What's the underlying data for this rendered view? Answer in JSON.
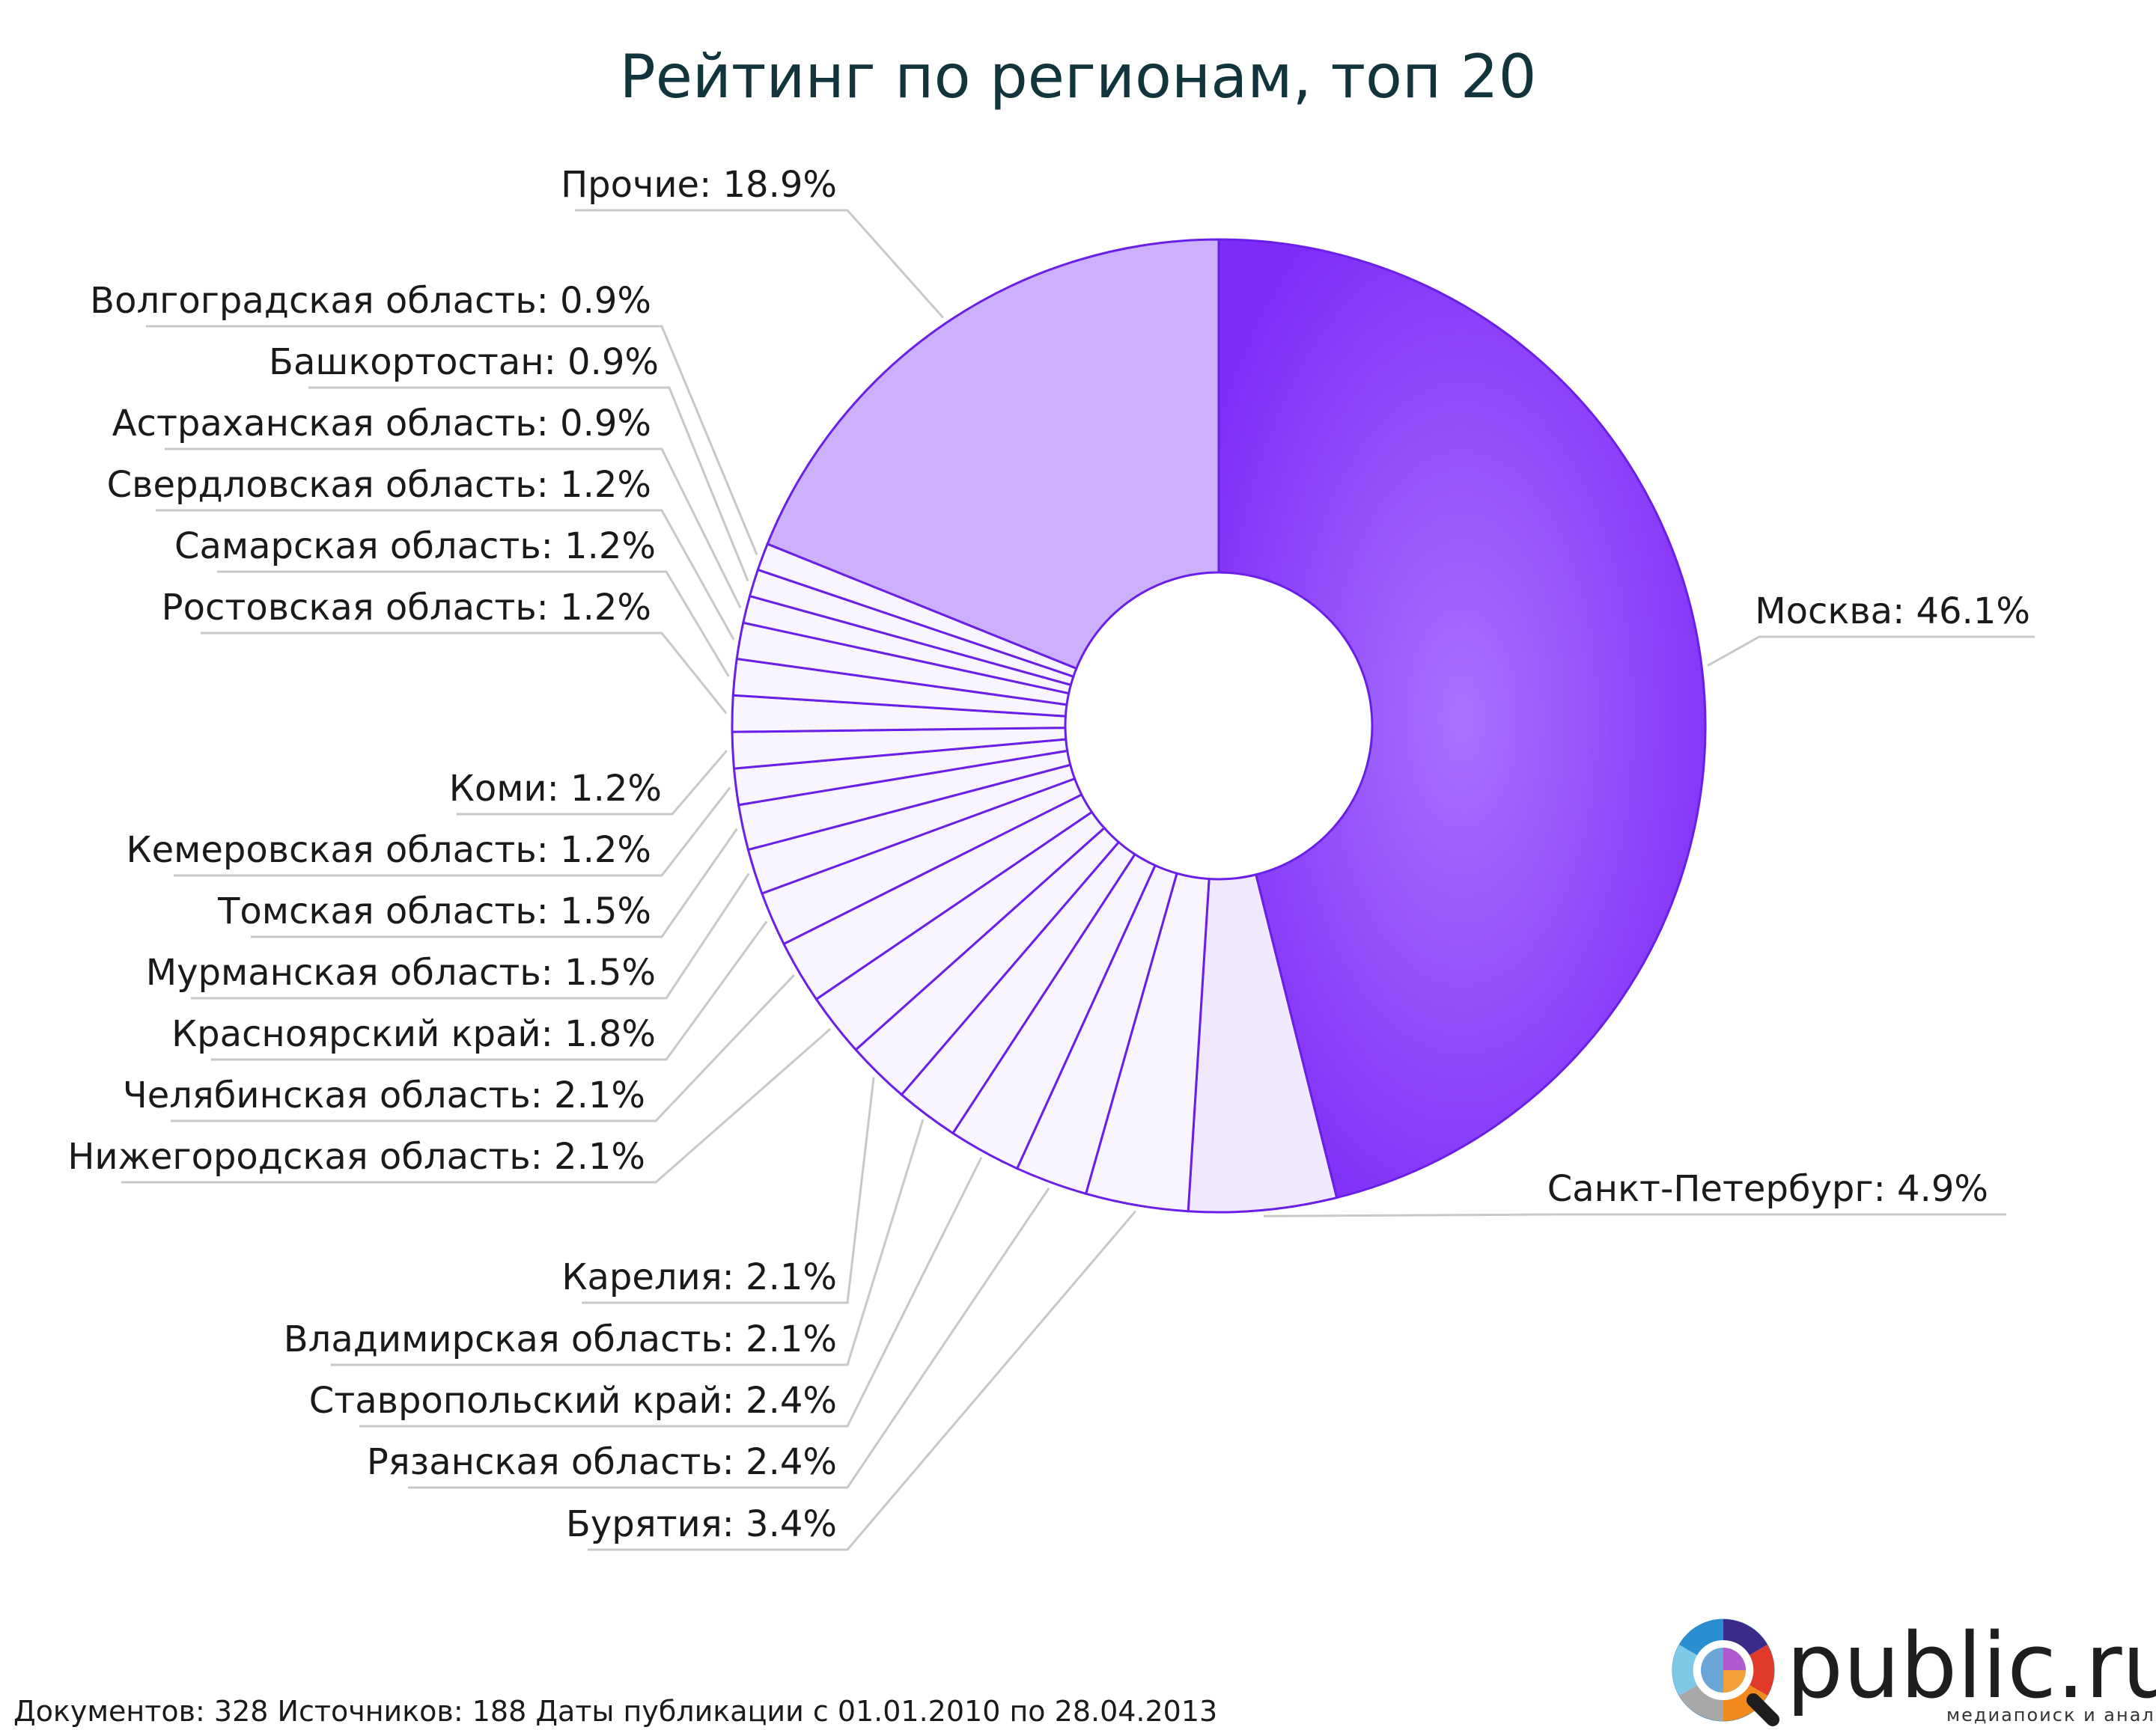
{
  "chart_data": {
    "type": "pie",
    "title": "Рейтинг по регионам, топ 20",
    "series": [
      {
        "name": "Москва",
        "value": 46.1,
        "label": "Москва: 46.1%"
      },
      {
        "name": "Санкт-Петербург",
        "value": 4.9,
        "label": "Санкт-Петербург: 4.9%"
      },
      {
        "name": "Бурятия",
        "value": 3.4,
        "label": "Бурятия: 3.4%"
      },
      {
        "name": "Рязанская область",
        "value": 2.4,
        "label": "Рязанская область: 2.4%"
      },
      {
        "name": "Ставропольский край",
        "value": 2.4,
        "label": "Ставропольский край: 2.4%"
      },
      {
        "name": "Владимирская область",
        "value": 2.1,
        "label": "Владимирская область: 2.1%"
      },
      {
        "name": "Карелия",
        "value": 2.1,
        "label": "Карелия: 2.1%"
      },
      {
        "name": "Нижегородская область",
        "value": 2.1,
        "label": "Нижегородская область: 2.1%"
      },
      {
        "name": "Челябинская область",
        "value": 2.1,
        "label": "Челябинская область: 2.1%"
      },
      {
        "name": "Красноярский край",
        "value": 1.8,
        "label": "Красноярский край: 1.8%"
      },
      {
        "name": "Мурманская область",
        "value": 1.5,
        "label": "Мурманская область: 1.5%"
      },
      {
        "name": "Томская область",
        "value": 1.5,
        "label": "Томская область: 1.5%"
      },
      {
        "name": "Кемеровская область",
        "value": 1.2,
        "label": "Кемеровская область: 1.2%"
      },
      {
        "name": "Коми",
        "value": 1.2,
        "label": "Коми: 1.2%"
      },
      {
        "name": "Ростовская область",
        "value": 1.2,
        "label": "Ростовская область: 1.2%"
      },
      {
        "name": "Самарская область",
        "value": 1.2,
        "label": "Самарская область: 1.2%"
      },
      {
        "name": "Свердловская область",
        "value": 1.2,
        "label": "Свердловская область: 1.2%"
      },
      {
        "name": "Астраханская область",
        "value": 0.9,
        "label": "Астраханская область: 0.9%"
      },
      {
        "name": "Башкортостан",
        "value": 0.9,
        "label": "Башкортостан: 0.9%"
      },
      {
        "name": "Волгоградская область",
        "value": 0.9,
        "label": "Волгоградская область: 0.9%"
      },
      {
        "name": "Прочие",
        "value": 18.9,
        "label": "Прочие: 18.9%"
      }
    ],
    "colors": {
      "moscow": "#8a3dfb",
      "others": "#cdb0fb",
      "small": "#f8f5fe",
      "spb": "#f0e9fd",
      "outline": "#6a1fe8",
      "leader": "#c8c8c8"
    }
  },
  "footer": {
    "text": "Документов: 328  Источников: 188  Даты публикации с 01.01.2010 по 28.04.2013"
  },
  "brand": {
    "name": "public.ru",
    "tagline": "медиапоиск и анализ"
  }
}
